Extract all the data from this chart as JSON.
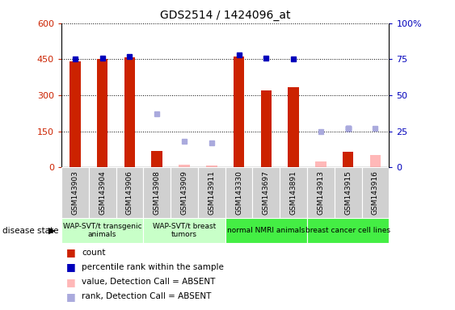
{
  "title": "GDS2514 / 1424096_at",
  "samples": [
    "GSM143903",
    "GSM143904",
    "GSM143906",
    "GSM143908",
    "GSM143909",
    "GSM143911",
    "GSM143330",
    "GSM143697",
    "GSM143891",
    "GSM143913",
    "GSM143915",
    "GSM143916"
  ],
  "count_present": [
    440,
    452,
    457,
    70,
    null,
    null,
    462,
    320,
    335,
    null,
    65,
    null
  ],
  "count_absent": [
    null,
    null,
    null,
    null,
    12,
    8,
    null,
    null,
    null,
    25,
    null,
    50
  ],
  "rank_present": [
    75,
    76,
    77,
    null,
    null,
    null,
    78,
    76,
    75,
    null,
    27,
    null
  ],
  "rank_absent": [
    null,
    null,
    null,
    37,
    18,
    17,
    null,
    null,
    null,
    25,
    27,
    27
  ],
  "groups": [
    {
      "label": "WAP-SVT/t transgenic\nanimals",
      "start": 0,
      "end": 3,
      "color": "#c8ffc8"
    },
    {
      "label": "WAP-SVT/t breast\ntumors",
      "start": 3,
      "end": 6,
      "color": "#c8ffc8"
    },
    {
      "label": "normal NMRI animals",
      "start": 6,
      "end": 9,
      "color": "#44ee44"
    },
    {
      "label": "breast cancer cell lines",
      "start": 9,
      "end": 12,
      "color": "#44ee44"
    }
  ],
  "ylim_left": [
    0,
    600
  ],
  "ylim_right": [
    0,
    100
  ],
  "yticks_left": [
    0,
    150,
    300,
    450,
    600
  ],
  "yticks_right": [
    0,
    25,
    50,
    75,
    100
  ],
  "bar_color_present": "#cc2200",
  "bar_color_absent": "#ffb8b8",
  "dot_color_present": "#0000bb",
  "dot_color_absent": "#aaaadd",
  "plot_bg": "#ffffff"
}
